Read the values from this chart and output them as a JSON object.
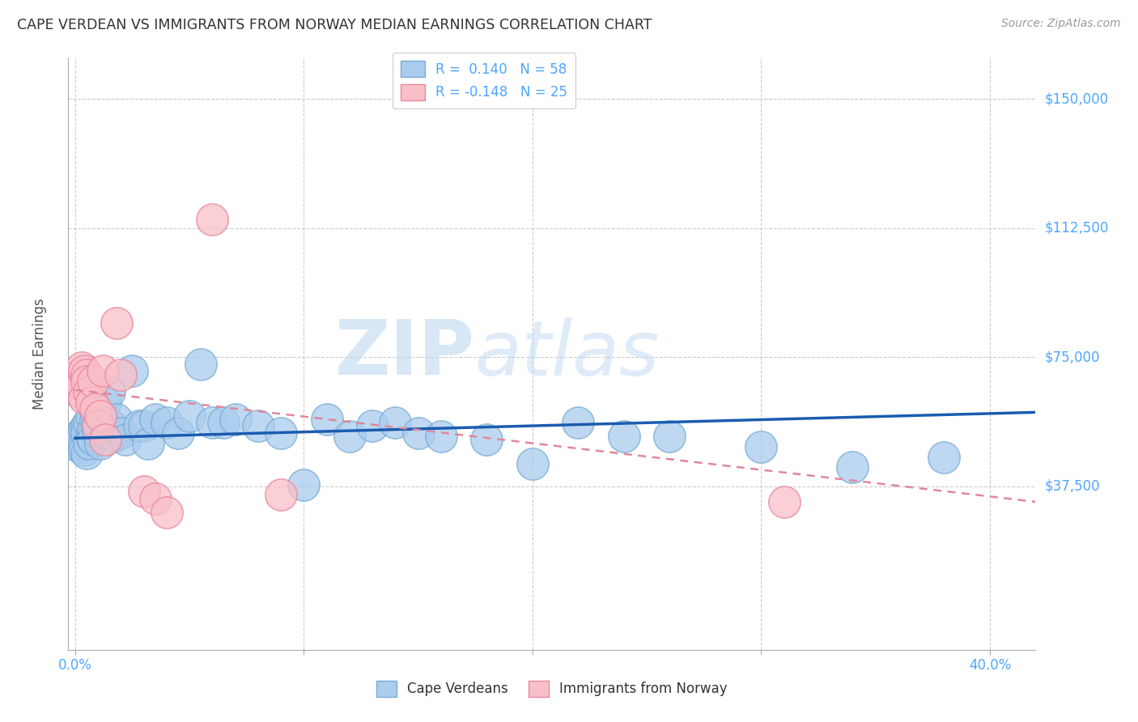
{
  "title": "CAPE VERDEAN VS IMMIGRANTS FROM NORWAY MEDIAN EARNINGS CORRELATION CHART",
  "source": "Source: ZipAtlas.com",
  "ylabel": "Median Earnings",
  "ylim": [
    -10000,
    162000
  ],
  "xlim": [
    -0.003,
    0.42
  ],
  "watermark": "ZIPatlas",
  "blue_R": 0.14,
  "blue_N": 58,
  "pink_R": -0.148,
  "pink_N": 25,
  "blue_scatter_x": [
    0.001,
    0.002,
    0.003,
    0.003,
    0.004,
    0.004,
    0.004,
    0.005,
    0.005,
    0.005,
    0.006,
    0.006,
    0.007,
    0.007,
    0.008,
    0.008,
    0.009,
    0.01,
    0.01,
    0.011,
    0.012,
    0.013,
    0.014,
    0.015,
    0.016,
    0.017,
    0.018,
    0.02,
    0.022,
    0.025,
    0.028,
    0.03,
    0.032,
    0.035,
    0.04,
    0.045,
    0.05,
    0.055,
    0.06,
    0.065,
    0.07,
    0.08,
    0.09,
    0.1,
    0.11,
    0.12,
    0.13,
    0.14,
    0.15,
    0.16,
    0.18,
    0.2,
    0.22,
    0.24,
    0.26,
    0.3,
    0.34,
    0.38
  ],
  "blue_scatter_y": [
    52000,
    49000,
    53000,
    51000,
    50000,
    54000,
    48000,
    55000,
    47000,
    53000,
    56000,
    50000,
    58000,
    52000,
    54000,
    51000,
    57000,
    53000,
    56000,
    50000,
    58000,
    62000,
    53000,
    65000,
    55000,
    52000,
    57000,
    53000,
    51000,
    71000,
    55000,
    55000,
    50000,
    57000,
    56000,
    53000,
    58000,
    73000,
    56000,
    56000,
    57000,
    55000,
    53000,
    38000,
    57000,
    52000,
    55000,
    56000,
    53000,
    52000,
    51000,
    44000,
    56000,
    52000,
    52000,
    49000,
    43000,
    46000
  ],
  "pink_scatter_x": [
    0.001,
    0.002,
    0.002,
    0.003,
    0.003,
    0.004,
    0.004,
    0.005,
    0.005,
    0.006,
    0.007,
    0.008,
    0.009,
    0.01,
    0.011,
    0.012,
    0.013,
    0.018,
    0.02,
    0.03,
    0.035,
    0.04,
    0.06,
    0.09,
    0.31
  ],
  "pink_scatter_y": [
    68000,
    70000,
    65000,
    67000,
    72000,
    71000,
    63000,
    70000,
    68000,
    65000,
    62000,
    68000,
    60000,
    55000,
    58000,
    71000,
    51000,
    85000,
    70000,
    36000,
    34000,
    30000,
    115000,
    35000,
    33000
  ],
  "blue_line_x": [
    0.0,
    0.42
  ],
  "blue_line_y": [
    51500,
    59000
  ],
  "pink_line_x": [
    0.0,
    0.42
  ],
  "pink_line_y": [
    65500,
    33000
  ],
  "blue_circle_color": "#aaccee",
  "blue_edge_color": "#7aadd4",
  "pink_circle_color": "#f9bfc8",
  "pink_edge_color": "#e888a0",
  "blue_line_color": "#1a5cb0",
  "pink_line_color": "#e08898",
  "grid_color": "#cccccc",
  "bg_color": "#ffffff",
  "title_color": "#333333",
  "axis_label_color": "#555555",
  "ytick_color": "#4da6ff",
  "ytick_vals": [
    37500,
    75000,
    112500,
    150000
  ],
  "ytick_labels": [
    "$37,500",
    "$75,000",
    "$112,500",
    "$150,000"
  ],
  "xtick_vals": [
    0.0,
    0.1,
    0.2,
    0.3,
    0.4
  ],
  "xtick_edge_labels": [
    "0.0%",
    "40.0%"
  ]
}
